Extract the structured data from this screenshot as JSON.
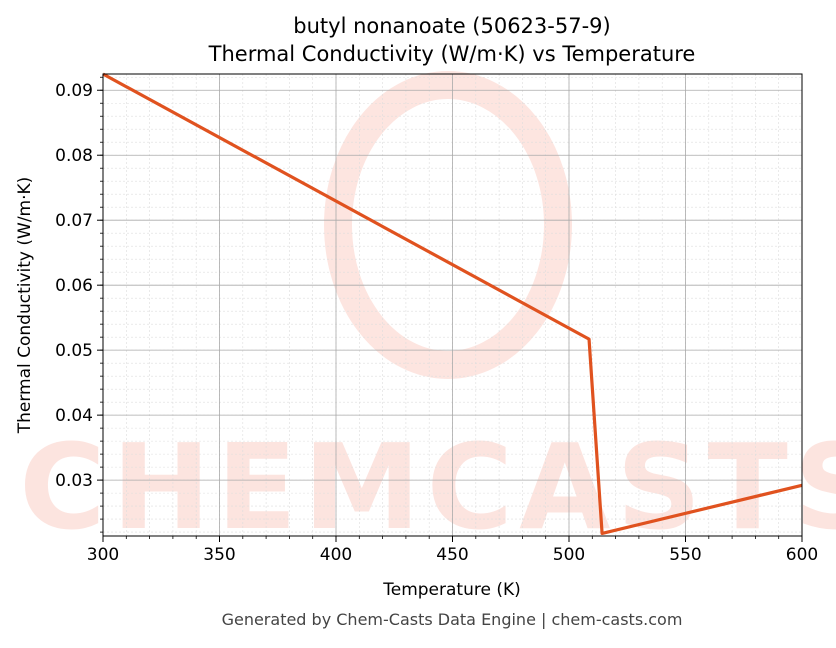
{
  "chart_data": {
    "type": "line",
    "title": "butyl nonanoate (50623-57-9)",
    "subtitle": "Thermal Conductivity (W/m·K) vs Temperature",
    "xlabel": "Temperature (K)",
    "ylabel": "Thermal Conductivity (W/m·K)",
    "xlim": [
      300,
      600
    ],
    "ylim": [
      0.0214,
      0.0925
    ],
    "xticks": [
      300,
      350,
      400,
      450,
      500,
      550,
      600
    ],
    "yticks": [
      0.03,
      0.04,
      0.05,
      0.06,
      0.07,
      0.08,
      0.09
    ],
    "grid": true,
    "series": [
      {
        "color": "#e0521f",
        "x": [
          300,
          508.6,
          514.2,
          600
        ],
        "y": [
          0.0925,
          0.0517,
          0.0218,
          0.0292
        ]
      }
    ]
  },
  "watermark": "CHEMCASTS",
  "footer": "Generated by Chem-Casts Data Engine | chem-casts.com"
}
